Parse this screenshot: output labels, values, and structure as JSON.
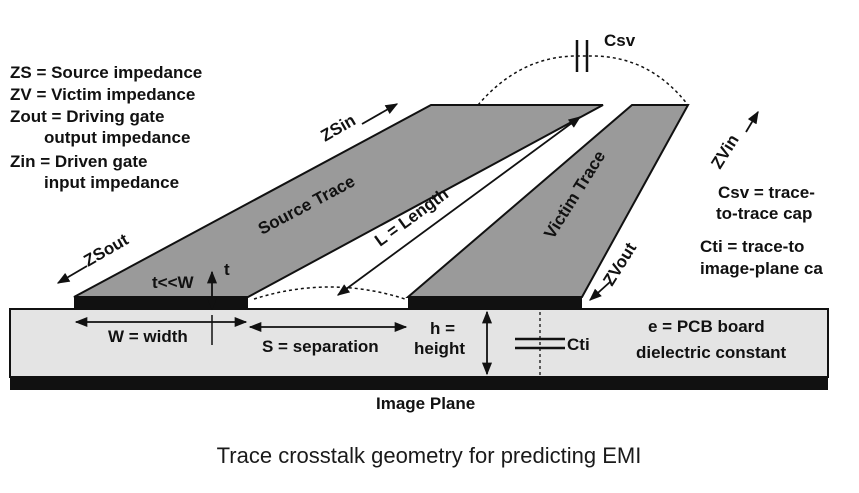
{
  "legend": {
    "zs": "ZS = Source impedance",
    "zv": "ZV = Victim impedance",
    "zout_1": "Zout = Driving gate",
    "zout_2": "output  impedance",
    "zin_1": "Zin = Driven gate",
    "zin_2": "input  impedance"
  },
  "right_notes": {
    "csv_1": "Csv = trace-",
    "csv_2": "to-trace cap",
    "cti_1": "Cti = trace-to",
    "cti_2": "image-plane ca"
  },
  "labels": {
    "csv": "Csv",
    "zsin": "ZSin",
    "zvin": "ZVin",
    "zsout": "ZSout",
    "zvout": "ZVout",
    "source_trace": "Source Trace",
    "victim_trace": "Victim Trace",
    "length": "L = Length",
    "t_small": "t<<W",
    "t": "t",
    "width": "W = width",
    "separation": "S = separation",
    "height_1": "h =",
    "height_2": "height",
    "cti": "Cti",
    "dielectric_1": "e = PCB board",
    "dielectric_2": "dielectric constant",
    "image_plane": "Image Plane"
  },
  "caption": "Trace crosstalk geometry for predicting EMI",
  "colors": {
    "trace_fill": "#9a9a9a",
    "board_fill": "#e4e4e4",
    "ink": "#111111"
  }
}
